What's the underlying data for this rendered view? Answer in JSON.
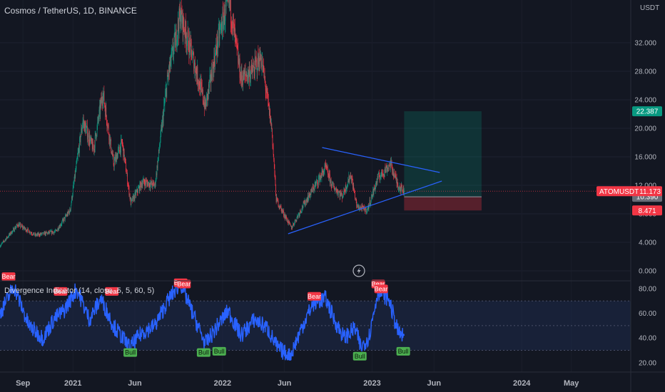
{
  "header": {
    "title": "Cosmos / TetherUS, 1D, BINANCE",
    "currency": "USDT"
  },
  "indicator": {
    "title": "Divergence Indicator (14, close, 5, 5, 60, 5)",
    "y_ticks": [
      "80.00",
      "60.00",
      "40.00",
      "20.00"
    ],
    "signals": [
      {
        "label": "Bear",
        "date": "2020-07-27",
        "value": 84
      },
      {
        "label": "Bear",
        "date": "2020-12-01",
        "value": 72
      },
      {
        "label": "Bear",
        "date": "2021-04-05",
        "value": 72
      },
      {
        "label": "Bull",
        "date": "2021-05-20",
        "value": 34
      },
      {
        "label": "Bear",
        "date": "2021-09-20",
        "value": 79
      },
      {
        "label": "Bear",
        "date": "2021-09-28",
        "value": 78
      },
      {
        "label": "Bull",
        "date": "2021-11-15",
        "value": 34
      },
      {
        "label": "Bull",
        "date": "2021-12-23",
        "value": 35
      },
      {
        "label": "Bear",
        "date": "2022-08-12",
        "value": 68
      },
      {
        "label": "Bull",
        "date": "2022-12-01",
        "value": 31
      },
      {
        "label": "Bear",
        "date": "2023-01-15",
        "value": 78
      },
      {
        "label": "Bear",
        "date": "2023-01-22",
        "value": 74
      },
      {
        "label": "Bull",
        "date": "2023-03-17",
        "value": 35
      }
    ]
  },
  "chart_data": {
    "type": "candlestick",
    "symbol": "ATOMUSDT",
    "interval": "1D",
    "exchange": "BINANCE",
    "price_axis": {
      "ticks": [
        "32.000",
        "28.000",
        "24.000",
        "20.000",
        "16.000",
        "12.000",
        "8.000",
        "4.000",
        "0.000"
      ],
      "ylim": [
        0,
        36
      ]
    },
    "x_axis": {
      "labels": [
        {
          "label": "Sep",
          "date": "2020-09-01"
        },
        {
          "label": "2021",
          "date": "2021-01-01"
        },
        {
          "label": "Jun",
          "date": "2021-06-01"
        },
        {
          "label": "2022",
          "date": "2022-01-01"
        },
        {
          "label": "Jun",
          "date": "2022-06-01"
        },
        {
          "label": "2023",
          "date": "2023-01-01"
        },
        {
          "label": "Jun",
          "date": "2023-06-01"
        },
        {
          "label": "2024",
          "date": "2024-01-01"
        },
        {
          "label": "May",
          "date": "2024-05-01"
        }
      ],
      "xlim": [
        "2020-07-07",
        "2024-09-23"
      ]
    },
    "price_path": [
      [
        "2020-07-07",
        3.5
      ],
      [
        "2020-08-20",
        6.5
      ],
      [
        "2020-10-01",
        5.0
      ],
      [
        "2020-11-20",
        5.5
      ],
      [
        "2020-12-25",
        8.5
      ],
      [
        "2021-01-25",
        21.0
      ],
      [
        "2021-02-20",
        17.0
      ],
      [
        "2021-03-15",
        25.0
      ],
      [
        "2021-04-10",
        15.0
      ],
      [
        "2021-05-01",
        18.0
      ],
      [
        "2021-05-22",
        9.5
      ],
      [
        "2021-06-20",
        12.5
      ],
      [
        "2021-07-20",
        12.0
      ],
      [
        "2021-08-20",
        27.0
      ],
      [
        "2021-09-20",
        36.0
      ],
      [
        "2021-10-20",
        30.0
      ],
      [
        "2021-11-20",
        23.0
      ],
      [
        "2021-12-25",
        33.5
      ],
      [
        "2022-01-17",
        38.0
      ],
      [
        "2022-02-15",
        27.0
      ],
      [
        "2022-03-15",
        28.0
      ],
      [
        "2022-04-05",
        30.0
      ],
      [
        "2022-05-01",
        20.0
      ],
      [
        "2022-05-12",
        10.0
      ],
      [
        "2022-06-18",
        6.0
      ],
      [
        "2022-07-15",
        9.0
      ],
      [
        "2022-09-10",
        14.5
      ],
      [
        "2022-09-25",
        12.0
      ],
      [
        "2022-10-20",
        10.5
      ],
      [
        "2022-11-10",
        13.5
      ],
      [
        "2022-11-25",
        9.0
      ],
      [
        "2022-12-20",
        8.5
      ],
      [
        "2023-01-15",
        13.0
      ],
      [
        "2023-02-15",
        15.0
      ],
      [
        "2023-03-05",
        12.0
      ],
      [
        "2023-03-20",
        11.17
      ]
    ],
    "rsi_path": [
      [
        "2020-07-07",
        60
      ],
      [
        "2020-08-10",
        82
      ],
      [
        "2020-09-15",
        50
      ],
      [
        "2020-10-20",
        40
      ],
      [
        "2020-11-15",
        55
      ],
      [
        "2020-12-10",
        62
      ],
      [
        "2021-01-10",
        80
      ],
      [
        "2021-02-10",
        55
      ],
      [
        "2021-03-10",
        72
      ],
      [
        "2021-04-10",
        50
      ],
      [
        "2021-05-20",
        32
      ],
      [
        "2021-06-20",
        45
      ],
      [
        "2021-07-20",
        50
      ],
      [
        "2021-08-20",
        70
      ],
      [
        "2021-09-20",
        85
      ],
      [
        "2021-10-20",
        60
      ],
      [
        "2021-11-20",
        35
      ],
      [
        "2021-12-20",
        50
      ],
      [
        "2022-01-15",
        62
      ],
      [
        "2022-02-15",
        42
      ],
      [
        "2022-03-20",
        55
      ],
      [
        "2022-04-20",
        48
      ],
      [
        "2022-05-15",
        32
      ],
      [
        "2022-06-15",
        25
      ],
      [
        "2022-07-15",
        50
      ],
      [
        "2022-08-10",
        68
      ],
      [
        "2022-09-10",
        72
      ],
      [
        "2022-09-30",
        55
      ],
      [
        "2022-10-25",
        40
      ],
      [
        "2022-11-20",
        48
      ],
      [
        "2022-12-05",
        32
      ],
      [
        "2022-12-25",
        42
      ],
      [
        "2023-01-15",
        78
      ],
      [
        "2023-02-10",
        72
      ],
      [
        "2023-03-05",
        45
      ],
      [
        "2023-03-20",
        40
      ]
    ],
    "rsi_band": [
      30,
      70
    ],
    "rsi_midline": 50,
    "trendlines": [
      {
        "name": "upper",
        "from": [
          "2022-09-01",
          17.3
        ],
        "to": [
          "2023-06-15",
          13.8
        ]
      },
      {
        "name": "lower",
        "from": [
          "2022-06-10",
          5.2
        ],
        "to": [
          "2023-06-20",
          12.6
        ]
      }
    ],
    "position": {
      "start": "2023-03-20",
      "end": "2023-09-25",
      "entry": 10.39,
      "target": 22.387,
      "stop": 8.471
    },
    "price_labels": [
      {
        "text": "22.387",
        "value": 22.387,
        "color": "#089981"
      },
      {
        "text": "10.390",
        "value": 10.39,
        "color": "#6a6d78"
      },
      {
        "text": "8.471",
        "value": 8.471,
        "color": "#f23645"
      }
    ],
    "last_price": {
      "symbol": "ATOMUSDT",
      "value": "11.173",
      "color": "#f23645"
    },
    "colors": {
      "up": "#089981",
      "down": "#f23645",
      "rsi_line": "#2962ff",
      "trendline": "#2962ff",
      "background": "#131722",
      "bull_tag": "#4caf50",
      "bear_tag": "#f23645"
    }
  }
}
